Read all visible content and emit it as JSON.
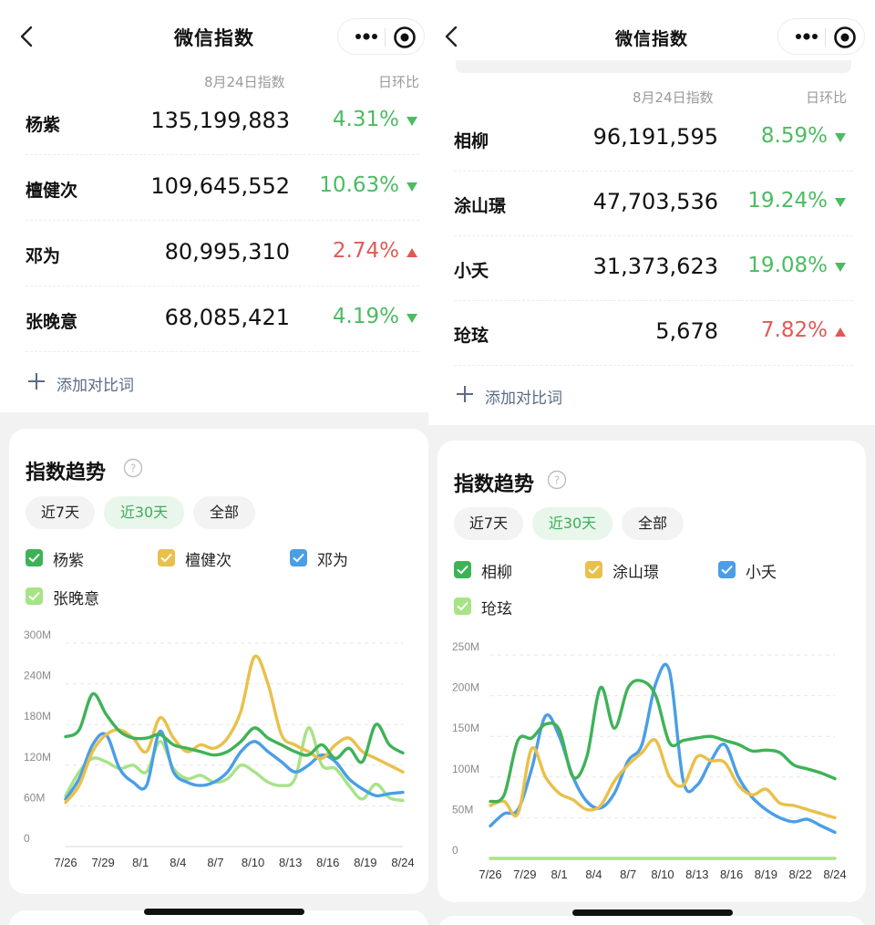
{
  "left": {
    "nav_title": "微信指数",
    "header": {
      "date_label": "8月24日指数",
      "change_label": "日环比"
    },
    "rows": [
      {
        "name": "杨紫",
        "value": "135,199,883",
        "change": "4.31%",
        "direction": "down"
      },
      {
        "name": "檀健次",
        "value": "109,645,552",
        "change": "10.63%",
        "direction": "down"
      },
      {
        "name": "邓为",
        "value": "80,995,310",
        "change": "2.74%",
        "direction": "up"
      },
      {
        "name": "张晚意",
        "value": "68,085,421",
        "change": "4.19%",
        "direction": "down"
      }
    ],
    "add_label": "添加对比词",
    "trend_title": "指数趋势",
    "ranges": [
      "近7天",
      "近30天",
      "全部"
    ],
    "active_range": "近30天",
    "chart_data": {
      "type": "line",
      "ylim": [
        0,
        300
      ],
      "y_ticks": [
        "0",
        "60M",
        "120M",
        "180M",
        "240M",
        "300M"
      ],
      "x_ticks": [
        "7/26",
        "7/29",
        "8/1",
        "8/4",
        "8/7",
        "8/10",
        "8/13",
        "8/16",
        "8/19",
        "8/24"
      ],
      "series": [
        {
          "name": "杨紫",
          "color": "#3fb257",
          "values": [
            162,
            172,
            225,
            195,
            170,
            160,
            160,
            165,
            150,
            145,
            140,
            135,
            140,
            155,
            175,
            160,
            150,
            140,
            135,
            150,
            130,
            145,
            125,
            180,
            150,
            138
          ]
        },
        {
          "name": "檀健次",
          "color": "#e9c04b",
          "values": [
            65,
            90,
            140,
            165,
            172,
            160,
            140,
            190,
            160,
            140,
            150,
            145,
            160,
            200,
            280,
            240,
            165,
            150,
            140,
            130,
            150,
            160,
            140,
            130,
            120,
            110
          ]
        },
        {
          "name": "邓为",
          "color": "#4a9ee6",
          "values": [
            70,
            100,
            150,
            165,
            115,
            95,
            90,
            170,
            110,
            95,
            90,
            95,
            110,
            140,
            155,
            140,
            125,
            110,
            120,
            135,
            125,
            100,
            85,
            75,
            78,
            80
          ]
        },
        {
          "name": "张晚意",
          "color": "#a7e387",
          "values": [
            75,
            110,
            130,
            125,
            115,
            120,
            110,
            155,
            115,
            100,
            105,
            95,
            100,
            120,
            110,
            95,
            90,
            100,
            175,
            120,
            115,
            90,
            70,
            92,
            72,
            68
          ]
        }
      ]
    }
  },
  "right": {
    "nav_title": "微信指数",
    "header": {
      "date_label": "8月24日指数",
      "change_label": "日环比"
    },
    "rows": [
      {
        "name": "相柳",
        "value": "96,191,595",
        "change": "8.59%",
        "direction": "down"
      },
      {
        "name": "涂山璟",
        "value": "47,703,536",
        "change": "19.24%",
        "direction": "down"
      },
      {
        "name": "小夭",
        "value": "31,373,623",
        "change": "19.08%",
        "direction": "down"
      },
      {
        "name": "玱玹",
        "value": "5,678",
        "change": "7.82%",
        "direction": "up"
      }
    ],
    "add_label": "添加对比词",
    "trend_title": "指数趋势",
    "ranges": [
      "近7天",
      "近30天",
      "全部"
    ],
    "active_range": "近30天",
    "chart_data": {
      "type": "line",
      "ylim": [
        0,
        250
      ],
      "y_ticks": [
        "0",
        "50M",
        "100M",
        "150M",
        "200M",
        "250M"
      ],
      "x_ticks": [
        "7/26",
        "7/29",
        "8/1",
        "8/4",
        "8/7",
        "8/10",
        "8/13",
        "8/16",
        "8/19",
        "8/22",
        "8/24"
      ],
      "series": [
        {
          "name": "相柳",
          "color": "#3fb257",
          "values": [
            70,
            78,
            145,
            148,
            165,
            158,
            100,
            125,
            210,
            160,
            210,
            218,
            200,
            142,
            145,
            148,
            150,
            145,
            140,
            132,
            133,
            130,
            115,
            110,
            105,
            98
          ]
        },
        {
          "name": "涂山璟",
          "color": "#e9c04b",
          "values": [
            65,
            70,
            55,
            135,
            100,
            80,
            72,
            60,
            65,
            95,
            115,
            130,
            145,
            100,
            90,
            125,
            120,
            118,
            90,
            78,
            85,
            68,
            65,
            60,
            55,
            50
          ]
        },
        {
          "name": "小夭",
          "color": "#4a9ee6",
          "values": [
            40,
            55,
            60,
            110,
            175,
            150,
            100,
            70,
            62,
            80,
            120,
            140,
            215,
            230,
            95,
            90,
            120,
            140,
            100,
            75,
            60,
            50,
            45,
            48,
            40,
            32
          ]
        },
        {
          "name": "玱玹",
          "color": "#a7e387",
          "values": [
            0,
            0,
            0,
            0,
            0,
            0,
            0,
            0,
            0,
            0,
            0,
            0,
            0,
            0,
            0,
            0,
            0,
            0,
            0,
            0,
            0,
            0,
            0,
            0,
            0,
            0
          ]
        }
      ]
    }
  }
}
